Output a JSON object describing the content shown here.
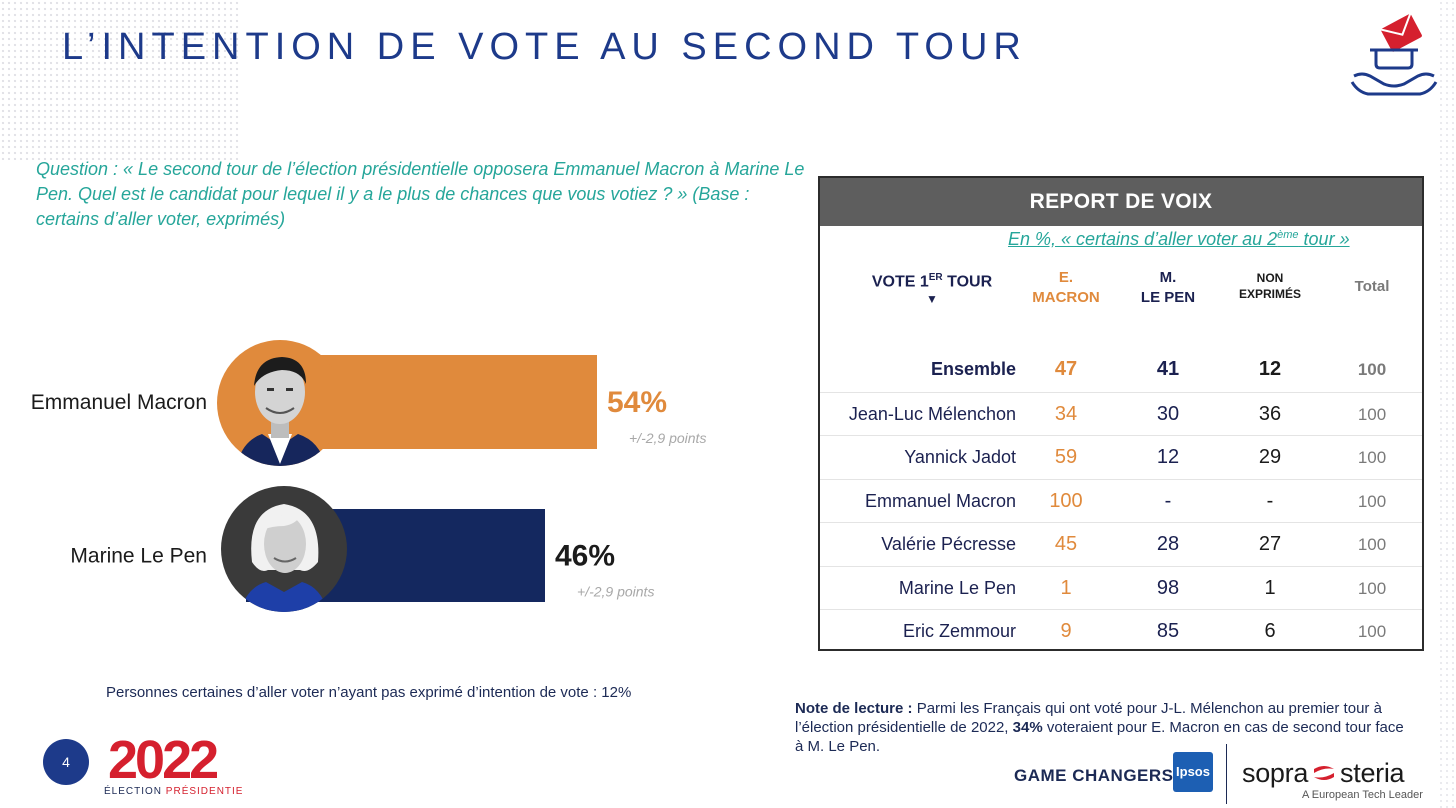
{
  "title": "L’INTENTION DE VOTE AU SECOND TOUR",
  "question": "Question : « Le second tour de l’élection présidentielle opposera Emmanuel Macron à Marine Le Pen. Quel est le candidat pour lequel il y a le plus de chances que vous votiez ? » (Base : certains d’aller voter, exprimés)",
  "chart_data": {
    "type": "bar",
    "orientation": "horizontal",
    "title": "",
    "categories": [
      "Emmanuel Macron",
      "Marine Le Pen"
    ],
    "values": [
      54,
      46
    ],
    "value_labels": [
      "54%",
      "46%"
    ],
    "margin_labels": [
      "+/-2,9 points",
      "+/-2,9 points"
    ],
    "colors": [
      "#e08a3c",
      "#14285f"
    ],
    "value_label_colors": [
      "#e08a3c",
      "#1b1b1b"
    ],
    "xlim": [
      0,
      100
    ]
  },
  "left_note": "Personnes certaines d’aller voter n’ayant pas exprimé d’intention de vote : 12%",
  "report_table": {
    "header": "REPORT DE VOIX",
    "subtitle_before": "En %, « certains d’aller voter au 2",
    "subtitle_sup": "ème",
    "subtitle_after": " tour »",
    "col_vote_main": "VOTE 1",
    "col_vote_sup": "ER",
    "col_vote_tail": " TOUR",
    "col_vote_arrow": "▼",
    "col_macron_l1": "E.",
    "col_macron_l2": "MACRON",
    "col_lepen_l1": "M.",
    "col_lepen_l2": "LE PEN",
    "col_non_l1": "NON",
    "col_non_l2": "EXPRIMÉS",
    "col_total": "Total",
    "rows": [
      {
        "label": "Ensemble",
        "macron": "47",
        "lepen": "41",
        "non": "12",
        "total": "100"
      },
      {
        "label": "Jean-Luc Mélenchon",
        "macron": "34",
        "lepen": "30",
        "non": "36",
        "total": "100"
      },
      {
        "label": "Yannick Jadot",
        "macron": "59",
        "lepen": "12",
        "non": "29",
        "total": "100"
      },
      {
        "label": "Emmanuel Macron",
        "macron": "100",
        "lepen": "-",
        "non": "-",
        "total": "100"
      },
      {
        "label": "Valérie Pécresse",
        "macron": "45",
        "lepen": "28",
        "non": "27",
        "total": "100"
      },
      {
        "label": "Marine Le Pen",
        "macron": "1",
        "lepen": "98",
        "non": "1",
        "total": "100"
      },
      {
        "label": "Eric Zemmour",
        "macron": "9",
        "lepen": "85",
        "non": "6",
        "total": "100"
      }
    ]
  },
  "reading_note": {
    "label": "Note de lecture :",
    "text_before": " Parmi les Français qui ont voté pour J-L. Mélenchon au premier tour à l’élection présidentielle de 2022, ",
    "highlight": "34%",
    "text_after": " voteraient pour E. Macron en cas de second tour face à M. Le Pen."
  },
  "footer": {
    "page_number": "4",
    "logo_year": "2022",
    "logo_sub_left": "ÉLECTION ",
    "logo_sub_right": "PRÉSIDENTIELLE",
    "game_changers": "GAME CHANGERS",
    "ipsos": "Ipsos",
    "sopra_left": "sopra",
    "sopra_right": "steria",
    "tagline": "A European Tech Leader"
  },
  "colors": {
    "title": "#1d3a8a",
    "question": "#26a69a",
    "macron": "#e08a3c",
    "lepen": "#14285f",
    "logo_red": "#d5202e"
  }
}
